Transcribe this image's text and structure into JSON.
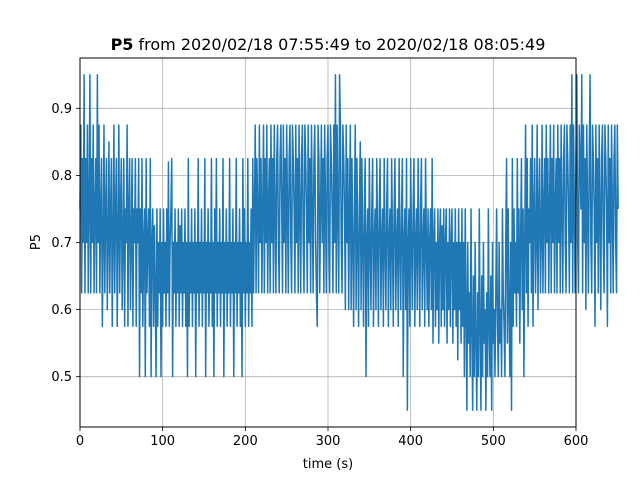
{
  "chart_data": {
    "type": "line",
    "title": {
      "bold": "P5",
      "rest": " from 2020/02/18 07:55:49 to 2020/02/18 08:05:49"
    },
    "xlabel": "time (s)",
    "ylabel": "P5",
    "xlim": [
      0,
      600
    ],
    "ylim": [
      0.425,
      0.975
    ],
    "xticks": [
      0,
      100,
      200,
      300,
      400,
      500,
      600
    ],
    "yticks": [
      0.5,
      0.6,
      0.7,
      0.8,
      0.9
    ],
    "xtick_labels": [
      "0",
      "100",
      "200",
      "300",
      "400",
      "500",
      "600"
    ],
    "ytick_labels": [
      "0.5",
      "0.6",
      "0.7",
      "0.8",
      "0.9"
    ],
    "grid": true,
    "color": "#1f77b4",
    "series": [
      {
        "x_start": 0,
        "x_step": 1,
        "values": [
          0.75,
          0.875,
          0.625,
          0.825,
          0.7,
          0.95,
          0.625,
          0.825,
          0.7,
          0.875,
          0.625,
          0.75,
          0.95,
          0.625,
          0.825,
          0.7,
          0.875,
          0.625,
          0.75,
          0.825,
          0.625,
          0.95,
          0.7,
          0.875,
          0.625,
          0.75,
          0.825,
          0.575,
          0.7,
          0.875,
          0.625,
          0.75,
          0.825,
          0.6,
          0.7,
          0.85,
          0.625,
          0.75,
          0.825,
          0.575,
          0.7,
          0.875,
          0.625,
          0.75,
          0.825,
          0.575,
          0.7,
          0.875,
          0.625,
          0.75,
          0.825,
          0.6,
          0.7,
          0.825,
          0.575,
          0.75,
          0.7,
          0.875,
          0.575,
          0.75,
          0.825,
          0.6,
          0.7,
          0.825,
          0.575,
          0.75,
          0.7,
          0.825,
          0.575,
          0.75,
          0.7,
          0.825,
          0.5,
          0.75,
          0.625,
          0.825,
          0.575,
          0.7,
          0.75,
          0.5,
          0.825,
          0.625,
          0.7,
          0.75,
          0.575,
          0.825,
          0.5,
          0.7,
          0.75,
          0.575,
          0.725,
          0.625,
          0.5,
          0.75,
          0.575,
          0.7,
          0.625,
          0.75,
          0.5,
          0.7,
          0.575,
          0.75,
          0.625,
          0.7,
          0.575,
          0.75,
          0.625,
          0.82,
          0.575,
          0.7,
          0.75,
          0.825,
          0.5,
          0.7,
          0.625,
          0.75,
          0.575,
          0.7,
          0.625,
          0.75,
          0.575,
          0.725,
          0.625,
          0.75,
          0.575,
          0.7,
          0.625,
          0.75,
          0.575,
          0.7,
          0.5,
          0.825,
          0.575,
          0.7,
          0.625,
          0.75,
          0.575,
          0.7,
          0.625,
          0.75,
          0.5,
          0.7,
          0.625,
          0.825,
          0.575,
          0.7,
          0.625,
          0.75,
          0.575,
          0.7,
          0.625,
          0.825,
          0.5,
          0.7,
          0.625,
          0.75,
          0.575,
          0.7,
          0.625,
          0.825,
          0.575,
          0.7,
          0.5,
          0.75,
          0.625,
          0.825,
          0.575,
          0.7,
          0.625,
          0.75,
          0.575,
          0.7,
          0.625,
          0.825,
          0.5,
          0.7,
          0.625,
          0.75,
          0.575,
          0.7,
          0.625,
          0.825,
          0.575,
          0.7,
          0.625,
          0.75,
          0.5,
          0.7,
          0.625,
          0.825,
          0.575,
          0.7,
          0.625,
          0.75,
          0.575,
          0.7,
          0.5,
          0.825,
          0.625,
          0.75,
          0.575,
          0.7,
          0.625,
          0.825,
          0.575,
          0.7,
          0.625,
          0.75,
          0.575,
          0.825,
          0.625,
          0.75,
          0.875,
          0.625,
          0.825,
          0.75,
          0.625,
          0.875,
          0.7,
          0.825,
          0.625,
          0.75,
          0.875,
          0.625,
          0.825,
          0.7,
          0.875,
          0.625,
          0.75,
          0.825,
          0.625,
          0.875,
          0.7,
          0.825,
          0.625,
          0.875,
          0.75,
          0.625,
          0.825,
          0.875,
          0.7,
          0.625,
          0.825,
          0.875,
          0.75,
          0.625,
          0.875,
          0.7,
          0.825,
          0.625,
          0.875,
          0.75,
          0.625,
          0.825,
          0.875,
          0.7,
          0.625,
          0.875,
          0.825,
          0.75,
          0.625,
          0.875,
          0.7,
          0.825,
          0.625,
          0.875,
          0.75,
          0.625,
          0.825,
          0.875,
          0.7,
          0.625,
          0.875,
          0.825,
          0.75,
          0.625,
          0.875,
          0.7,
          0.825,
          0.625,
          0.875,
          0.75,
          0.625,
          0.825,
          0.875,
          0.7,
          0.625,
          0.575,
          0.875,
          0.825,
          0.625,
          0.75,
          0.875,
          0.7,
          0.825,
          0.625,
          0.875,
          0.75,
          0.625,
          0.825,
          0.875,
          0.7,
          0.625,
          0.875,
          0.825,
          0.75,
          0.625,
          0.875,
          0.7,
          0.95,
          0.625,
          0.875,
          0.75,
          0.625,
          0.95,
          0.875,
          0.7,
          0.625,
          0.875,
          0.825,
          0.75,
          0.6,
          0.875,
          0.7,
          0.825,
          0.6,
          0.75,
          0.875,
          0.6,
          0.825,
          0.7,
          0.575,
          0.75,
          0.875,
          0.6,
          0.825,
          0.7,
          0.575,
          0.75,
          0.85,
          0.6,
          0.825,
          0.7,
          0.575,
          0.75,
          0.825,
          0.5,
          0.7,
          0.75,
          0.575,
          0.825,
          0.7,
          0.6,
          0.75,
          0.825,
          0.575,
          0.7,
          0.75,
          0.6,
          0.825,
          0.7,
          0.575,
          0.75,
          0.825,
          0.6,
          0.7,
          0.75,
          0.575,
          0.825,
          0.7,
          0.6,
          0.75,
          0.825,
          0.575,
          0.7,
          0.75,
          0.6,
          0.825,
          0.7,
          0.575,
          0.75,
          0.825,
          0.6,
          0.7,
          0.75,
          0.575,
          0.825,
          0.7,
          0.6,
          0.75,
          0.825,
          0.5,
          0.7,
          0.75,
          0.6,
          0.825,
          0.45,
          0.7,
          0.75,
          0.575,
          0.825,
          0.7,
          0.6,
          0.75,
          0.825,
          0.575,
          0.7,
          0.75,
          0.6,
          0.825,
          0.7,
          0.575,
          0.75,
          0.825,
          0.6,
          0.7,
          0.75,
          0.575,
          0.825,
          0.7,
          0.6,
          0.75,
          0.575,
          0.7,
          0.75,
          0.6,
          0.825,
          0.55,
          0.7,
          0.75,
          0.575,
          0.7,
          0.6,
          0.75,
          0.55,
          0.7,
          0.75,
          0.575,
          0.725,
          0.6,
          0.75,
          0.575,
          0.7,
          0.75,
          0.55,
          0.7,
          0.6,
          0.75,
          0.575,
          0.7,
          0.75,
          0.55,
          0.7,
          0.6,
          0.75,
          0.575,
          0.7,
          0.525,
          0.75,
          0.6,
          0.7,
          0.55,
          0.75,
          0.575,
          0.7,
          0.5,
          0.75,
          0.6,
          0.45,
          0.7,
          0.55,
          0.625,
          0.5,
          0.75,
          0.575,
          0.45,
          0.65,
          0.5,
          0.7,
          0.55,
          0.45,
          0.625,
          0.5,
          0.75,
          0.575,
          0.45,
          0.65,
          0.5,
          0.7,
          0.55,
          0.6,
          0.45,
          0.625,
          0.5,
          0.75,
          0.575,
          0.5,
          0.65,
          0.45,
          0.7,
          0.55,
          0.6,
          0.5,
          0.625,
          0.75,
          0.575,
          0.5,
          0.7,
          0.55,
          0.6,
          0.5,
          0.75,
          0.625,
          0.575,
          0.5,
          0.7,
          0.825,
          0.55,
          0.75,
          0.6,
          0.5,
          0.7,
          0.45,
          0.825,
          0.575,
          0.75,
          0.625,
          0.7,
          0.575,
          0.825,
          0.625,
          0.75,
          0.55,
          0.7,
          0.825,
          0.6,
          0.75,
          0.5,
          0.7,
          0.875,
          0.625,
          0.825,
          0.575,
          0.75,
          0.7,
          0.825,
          0.625,
          0.875,
          0.575,
          0.75,
          0.825,
          0.625,
          0.7,
          0.875,
          0.6,
          0.75,
          0.825,
          0.625,
          0.7,
          0.875,
          0.625,
          0.75,
          0.825,
          0.625,
          0.875,
          0.7,
          0.825,
          0.625,
          0.75,
          0.875,
          0.625,
          0.825,
          0.7,
          0.875,
          0.625,
          0.75,
          0.825,
          0.625,
          0.875,
          0.7,
          0.825,
          0.625,
          0.875,
          0.75,
          0.625,
          0.825,
          0.875,
          0.7,
          0.625,
          0.875,
          0.825,
          0.75,
          0.625,
          0.875,
          0.7,
          0.95,
          0.625,
          0.875,
          0.75,
          0.625,
          0.825,
          0.95,
          0.7,
          0.625,
          0.875,
          0.825,
          0.75,
          0.95,
          0.625,
          0.875,
          0.7,
          0.825,
          0.6,
          0.875,
          0.75,
          0.625,
          0.825,
          0.95,
          0.7,
          0.625,
          0.875,
          0.825,
          0.75,
          0.575,
          0.875,
          0.7,
          0.825,
          0.625,
          0.875,
          0.75,
          0.6,
          0.825,
          0.875,
          0.7,
          0.625,
          0.875,
          0.825,
          0.75,
          0.575,
          0.875,
          0.7,
          0.825,
          0.625,
          0.875,
          0.75,
          0.625,
          0.825,
          0.875,
          0.7,
          0.625,
          0.875,
          0.75
        ]
      }
    ]
  }
}
